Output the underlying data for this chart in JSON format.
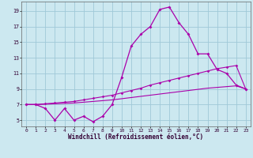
{
  "xlabel": "Windchill (Refroidissement éolien,°C)",
  "background_color": "#cce8f0",
  "grid_color": "#9fc8d8",
  "line_color": "#aa00aa",
  "x_ticks": [
    0,
    1,
    2,
    3,
    4,
    5,
    6,
    7,
    8,
    9,
    10,
    11,
    12,
    13,
    14,
    15,
    16,
    17,
    18,
    19,
    20,
    21,
    22,
    23
  ],
  "y_ticks": [
    5,
    7,
    9,
    11,
    13,
    15,
    17,
    19
  ],
  "xlim": [
    -0.5,
    23.5
  ],
  "ylim": [
    4.2,
    20.2
  ],
  "line1_x": [
    0,
    1,
    2,
    3,
    4,
    5,
    6,
    7,
    8,
    9,
    10,
    11,
    12,
    13,
    14,
    15,
    16,
    17,
    18,
    19,
    20,
    21,
    22,
    23
  ],
  "line1_y": [
    7.0,
    7.0,
    6.5,
    5.0,
    6.5,
    5.0,
    5.5,
    4.8,
    5.5,
    7.0,
    10.5,
    14.5,
    16.0,
    17.0,
    19.2,
    19.5,
    17.5,
    16.0,
    13.5,
    13.5,
    11.5,
    11.0,
    9.5,
    9.0
  ],
  "line2_x": [
    0,
    1,
    2,
    3,
    4,
    5,
    6,
    7,
    8,
    9,
    10,
    11,
    12,
    13,
    14,
    15,
    16,
    17,
    18,
    19,
    20,
    21,
    22,
    23
  ],
  "line2_y": [
    7.0,
    7.0,
    7.1,
    7.2,
    7.3,
    7.4,
    7.6,
    7.8,
    8.0,
    8.2,
    8.5,
    8.8,
    9.1,
    9.5,
    9.8,
    10.1,
    10.4,
    10.7,
    11.0,
    11.3,
    11.6,
    11.8,
    12.0,
    9.0
  ],
  "line3_x": [
    0,
    1,
    2,
    3,
    4,
    5,
    6,
    7,
    8,
    9,
    10,
    11,
    12,
    13,
    14,
    15,
    16,
    17,
    18,
    19,
    20,
    21,
    22,
    23
  ],
  "line3_y": [
    7.0,
    7.0,
    7.05,
    7.1,
    7.15,
    7.2,
    7.3,
    7.4,
    7.5,
    7.6,
    7.75,
    7.9,
    8.05,
    8.2,
    8.35,
    8.5,
    8.65,
    8.8,
    8.95,
    9.1,
    9.2,
    9.3,
    9.4,
    9.0
  ]
}
